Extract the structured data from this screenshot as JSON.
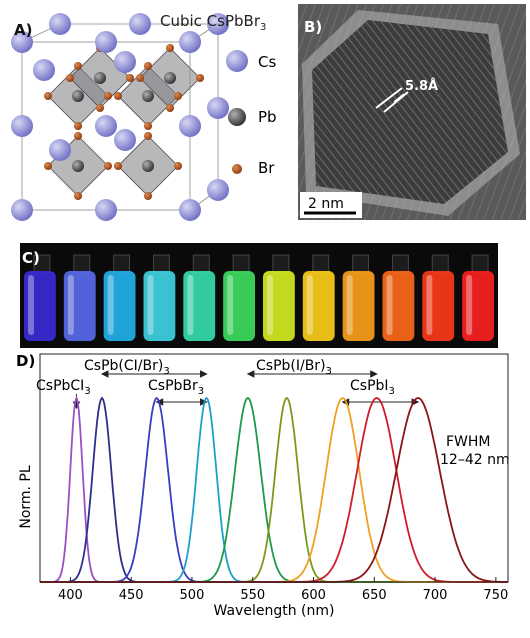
{
  "panel_a": {
    "label": "A)",
    "title_main": "Cubic CsPbBr",
    "title_sub": "3",
    "legend": [
      {
        "name": "Cs",
        "color": "#8f8fd6"
      },
      {
        "name": "Pb",
        "color": "#555555"
      },
      {
        "name": "Br",
        "color": "#b0521c"
      }
    ]
  },
  "panel_b": {
    "label": "B)",
    "spacing": "5.8Å",
    "scalebar": "2 nm"
  },
  "panel_c": {
    "label": "C)",
    "vial_colors": [
      "#3a2bd8",
      "#5a6cf0",
      "#22b4f0",
      "#3fd6e6",
      "#36e0b0",
      "#3ee060",
      "#d8f020",
      "#ffd21a",
      "#ffa21a",
      "#ff6a1a",
      "#ff3a1a",
      "#ff2020"
    ]
  },
  "panel_d": {
    "label": "D)",
    "annotations": {
      "cspbcl3": {
        "main": "CsPbCI",
        "sub": "3"
      },
      "cspbclbr": {
        "main": "CsPb(CI/Br)",
        "sub": "3"
      },
      "cspbbr3": {
        "main": "CsPbBr",
        "sub": "3"
      },
      "cspbibr": {
        "main": "CsPb(I/Br)",
        "sub": "3"
      },
      "cspbi3": {
        "main": "CsPbI",
        "sub": "3"
      }
    },
    "fwhm_line1": "FWHM",
    "fwhm_line2": "12–42 nm"
  },
  "chart_data": {
    "type": "line",
    "xlabel": "Wavelength (nm)",
    "ylabel": "Norm. PL",
    "xlim": [
      375,
      760
    ],
    "ylim": [
      0,
      1
    ],
    "xticks": [
      "400",
      "450",
      "500",
      "550",
      "600",
      "650",
      "700",
      "750"
    ],
    "series": [
      {
        "peak": 405,
        "fwhm": 12,
        "color": "#9b4fc4"
      },
      {
        "peak": 426,
        "fwhm": 18,
        "color": "#2c2f8a"
      },
      {
        "peak": 471,
        "fwhm": 22,
        "color": "#3a3dbf"
      },
      {
        "peak": 512,
        "fwhm": 19,
        "color": "#1fa0c8"
      },
      {
        "peak": 546,
        "fwhm": 25,
        "color": "#1d9a4a"
      },
      {
        "peak": 578,
        "fwhm": 22,
        "color": "#7a9a1e"
      },
      {
        "peak": 624,
        "fwhm": 32,
        "color": "#f0a020"
      },
      {
        "peak": 652,
        "fwhm": 38,
        "color": "#d01c2a"
      },
      {
        "peak": 686,
        "fwhm": 42,
        "color": "#8b1414"
      }
    ]
  }
}
